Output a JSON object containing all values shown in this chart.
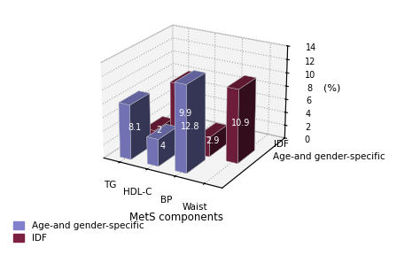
{
  "categories": [
    "TG",
    "HDL-C",
    "BP",
    "Waist"
  ],
  "age_vals": [
    8.1,
    4.0,
    12.8,
    0.0
  ],
  "idf_vals": [
    2.0,
    9.9,
    2.9,
    10.9
  ],
  "age_labels": [
    "8.1",
    "4",
    "12.8",
    ""
  ],
  "idf_labels": [
    "2",
    "9.9",
    "2.9",
    "10.9"
  ],
  "age_color": "#8080CC",
  "idf_color": "#7B2040",
  "ylabel": "(%)",
  "xlabel": "MetS components",
  "ylim": [
    0,
    14
  ],
  "yticks": [
    0,
    2,
    4,
    6,
    8,
    10,
    12,
    14
  ],
  "legend_labels": [
    "Age-and gender-specific",
    "IDF"
  ],
  "note_idf": "IDF",
  "note_age": "Age-and gender-specific",
  "elev": 22,
  "azim": -60
}
